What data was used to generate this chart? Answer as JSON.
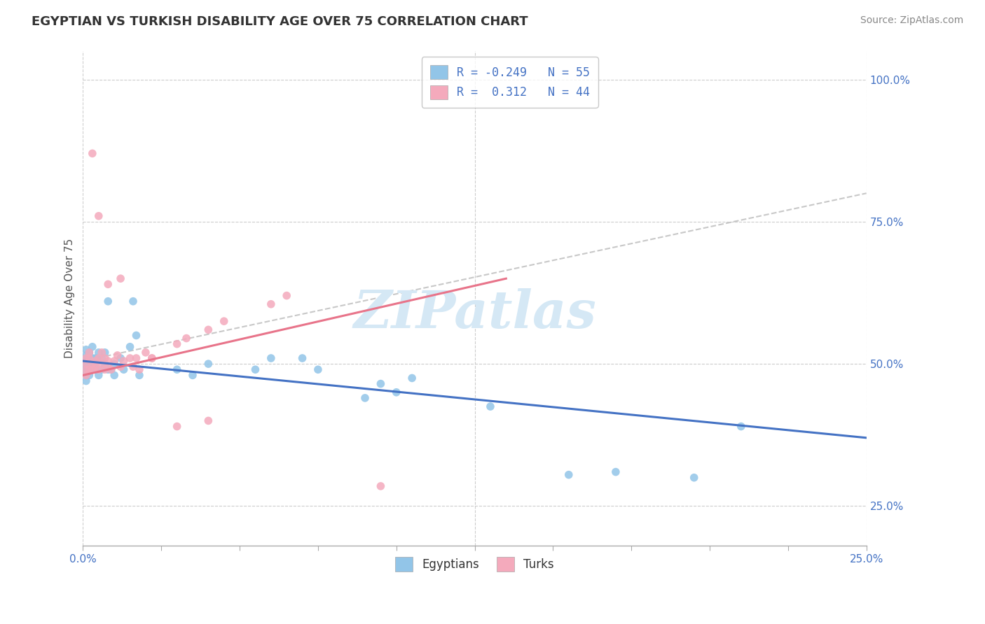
{
  "title": "EGYPTIAN VS TURKISH DISABILITY AGE OVER 75 CORRELATION CHART",
  "source": "Source: ZipAtlas.com",
  "ylabel": "Disability Age Over 75",
  "xlim": [
    0.0,
    0.25
  ],
  "ylim": [
    0.18,
    1.05
  ],
  "xtick_positions": [
    0.0,
    0.025,
    0.05,
    0.075,
    0.1,
    0.125,
    0.15,
    0.175,
    0.2,
    0.225,
    0.25
  ],
  "xticklabels": [
    "0.0%",
    "",
    "",
    "",
    "",
    "",
    "",
    "",
    "",
    "",
    "25.0%"
  ],
  "ytick_positions": [
    0.25,
    0.5,
    0.75,
    1.0
  ],
  "yticklabels": [
    "25.0%",
    "50.0%",
    "75.0%",
    "100.0%"
  ],
  "egyptian_color": "#92C5E8",
  "turkish_color": "#F4AABC",
  "egyptian_line_color": "#4472C4",
  "turkish_line_color": "#E8748A",
  "gray_dash_color": "#C8C8C8",
  "watermark_color": "#D5E8F5",
  "egyptian_R": -0.249,
  "egyptian_N": 55,
  "turkish_R": 0.312,
  "turkish_N": 44,
  "egyptian_line_x": [
    0.0,
    0.25
  ],
  "egyptian_line_y": [
    0.505,
    0.37
  ],
  "turkish_line_x": [
    0.0,
    0.135
  ],
  "turkish_line_y": [
    0.48,
    0.65
  ],
  "gray_line_x": [
    0.0,
    0.25
  ],
  "gray_line_y": [
    0.505,
    0.8
  ],
  "egyptian_points_x": [
    0.001,
    0.001,
    0.001,
    0.001,
    0.001,
    0.001,
    0.001,
    0.001,
    0.001,
    0.002,
    0.002,
    0.002,
    0.002,
    0.002,
    0.003,
    0.003,
    0.003,
    0.003,
    0.004,
    0.004,
    0.004,
    0.005,
    0.005,
    0.005,
    0.006,
    0.006,
    0.007,
    0.007,
    0.008,
    0.008,
    0.009,
    0.01,
    0.01,
    0.012,
    0.013,
    0.015,
    0.016,
    0.017,
    0.018,
    0.03,
    0.035,
    0.04,
    0.055,
    0.06,
    0.07,
    0.075,
    0.09,
    0.095,
    0.1,
    0.105,
    0.13,
    0.155,
    0.17,
    0.195,
    0.21
  ],
  "egyptian_points_y": [
    0.5,
    0.49,
    0.51,
    0.48,
    0.525,
    0.515,
    0.505,
    0.495,
    0.47,
    0.49,
    0.51,
    0.5,
    0.52,
    0.48,
    0.5,
    0.49,
    0.51,
    0.53,
    0.49,
    0.51,
    0.5,
    0.48,
    0.505,
    0.52,
    0.49,
    0.51,
    0.5,
    0.52,
    0.61,
    0.49,
    0.49,
    0.48,
    0.5,
    0.51,
    0.49,
    0.53,
    0.61,
    0.55,
    0.48,
    0.49,
    0.48,
    0.5,
    0.49,
    0.51,
    0.51,
    0.49,
    0.44,
    0.465,
    0.45,
    0.475,
    0.425,
    0.305,
    0.31,
    0.3,
    0.39
  ],
  "turkish_points_x": [
    0.001,
    0.001,
    0.001,
    0.001,
    0.002,
    0.002,
    0.002,
    0.003,
    0.003,
    0.003,
    0.004,
    0.004,
    0.005,
    0.005,
    0.006,
    0.006,
    0.007,
    0.007,
    0.008,
    0.008,
    0.009,
    0.01,
    0.011,
    0.012,
    0.013,
    0.015,
    0.016,
    0.017,
    0.02,
    0.022,
    0.03,
    0.033,
    0.04,
    0.045,
    0.06,
    0.065,
    0.095,
    0.005,
    0.008,
    0.012,
    0.018,
    0.022,
    0.03,
    0.04
  ],
  "turkish_points_y": [
    0.5,
    0.49,
    0.51,
    0.48,
    0.52,
    0.49,
    0.51,
    0.5,
    0.49,
    0.87,
    0.505,
    0.495,
    0.49,
    0.51,
    0.5,
    0.52,
    0.49,
    0.51,
    0.505,
    0.495,
    0.49,
    0.505,
    0.515,
    0.495,
    0.505,
    0.51,
    0.495,
    0.51,
    0.52,
    0.51,
    0.535,
    0.545,
    0.56,
    0.575,
    0.605,
    0.62,
    0.285,
    0.76,
    0.64,
    0.65,
    0.49,
    0.51,
    0.39,
    0.4
  ]
}
